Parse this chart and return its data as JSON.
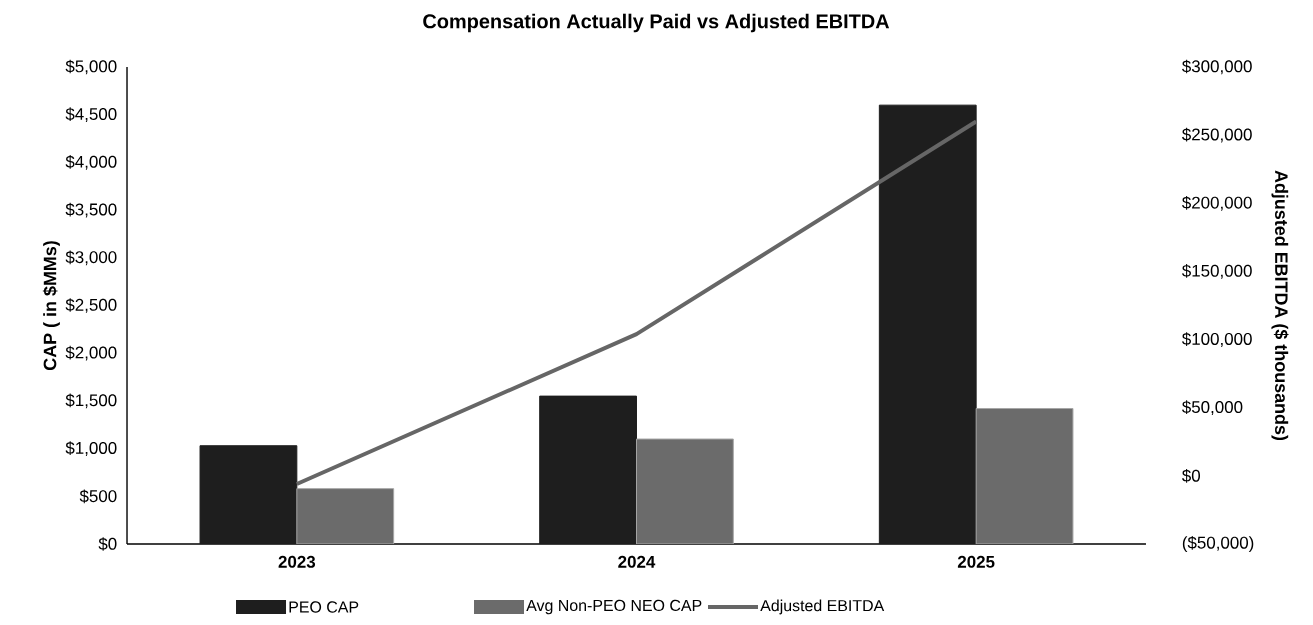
{
  "chart_data": {
    "type": "bar",
    "title": "Compensation Actually Paid vs Adjusted EBITDA",
    "categories": [
      "2023",
      "2024",
      "2025"
    ],
    "ylabel": "CAP ( in $MMs)",
    "y2label": "Adjusted EBITDA ($ thousands)",
    "ylim": [
      0,
      5000
    ],
    "yticks": [
      {
        "value": 0,
        "label": "$0"
      },
      {
        "value": 500,
        "label": "$500"
      },
      {
        "value": 1000,
        "label": "$1,000"
      },
      {
        "value": 1500,
        "label": "$1,500"
      },
      {
        "value": 2000,
        "label": "$2,000"
      },
      {
        "value": 2500,
        "label": "$2,500"
      },
      {
        "value": 3000,
        "label": "$3,000"
      },
      {
        "value": 3500,
        "label": "$3,500"
      },
      {
        "value": 4000,
        "label": "$4,000"
      },
      {
        "value": 4500,
        "label": "$4,500"
      },
      {
        "value": 5000,
        "label": "$5,000"
      }
    ],
    "y2lim": [
      -50000,
      300000
    ],
    "y2ticks": [
      {
        "value": -50000,
        "label": "($50,000)"
      },
      {
        "value": 0,
        "label": "$0"
      },
      {
        "value": 50000,
        "label": "$50,000"
      },
      {
        "value": 100000,
        "label": "$100,000"
      },
      {
        "value": 150000,
        "label": "$150,000"
      },
      {
        "value": 200000,
        "label": "$200,000"
      },
      {
        "value": 250000,
        "label": "$250,000"
      },
      {
        "value": 300000,
        "label": "$300,000"
      }
    ],
    "series": [
      {
        "name": "PEO CAP",
        "color": "#1e1e1e",
        "values": [
          1030,
          1550,
          4600
        ]
      },
      {
        "name": "Avg Non-PEO NEO CAP",
        "color": "#6b6b6b",
        "values": [
          580,
          1100,
          1420
        ]
      },
      {
        "name": "Adjusted EBITDA",
        "type": "line",
        "axis": "y2",
        "color": "#666666",
        "values": [
          -6000,
          104000,
          260000
        ]
      }
    ],
    "legend": "bottom",
    "grid": false
  }
}
